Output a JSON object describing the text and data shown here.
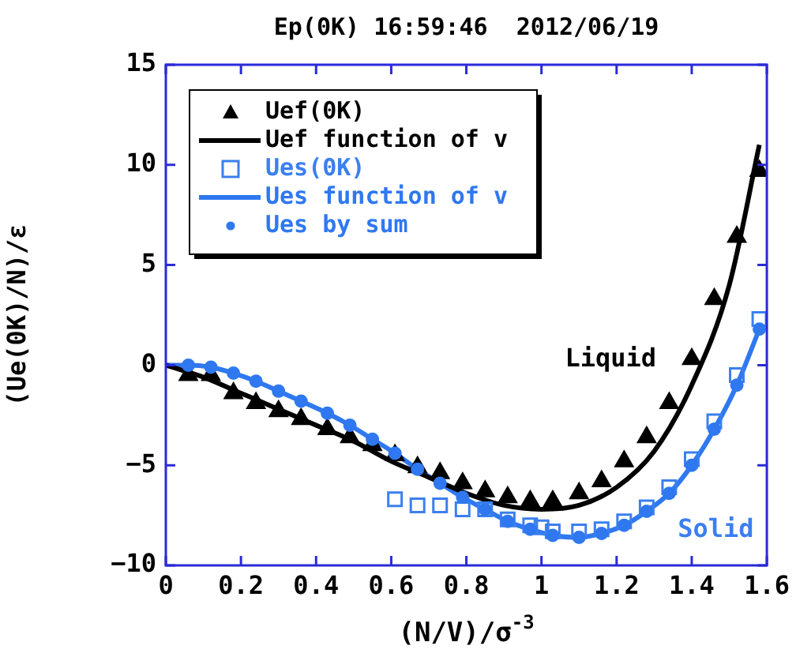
{
  "chart_data": {
    "type": "scatter",
    "title": "Ep(0K) 16:59:46  2012/06/19",
    "xlabel": "(N/V)/σ$^{-3}$",
    "ylabel": "(Ue(0K)/N)/ε",
    "xlim": [
      0,
      1.6
    ],
    "xticks": [
      0,
      0.2,
      0.4,
      0.6,
      0.8,
      1,
      1.2,
      1.4,
      1.6
    ],
    "ylim": [
      -10,
      15
    ],
    "yticks": [
      -10,
      -5,
      0,
      5,
      10,
      15
    ],
    "grid": false,
    "legend": "top left",
    "annotations": [
      "Liquid",
      "Solid"
    ],
    "series": [
      {
        "name": "Uef(0K)",
        "type": "scatter",
        "marker": "triangle",
        "color": "#000000",
        "x": [
          0.06,
          0.12,
          0.18,
          0.24,
          0.3,
          0.36,
          0.43,
          0.49,
          0.55,
          0.61,
          0.67,
          0.73,
          0.79,
          0.85,
          0.91,
          0.97,
          1.03,
          1.1,
          1.16,
          1.22,
          1.28,
          1.34,
          1.4,
          1.46,
          1.52,
          1.58
        ],
        "values": [
          -0.5,
          -0.5,
          -1.4,
          -1.9,
          -2.3,
          -2.7,
          -3.2,
          -3.6,
          -4.0,
          -4.5,
          -5.1,
          -5.4,
          -5.9,
          -6.3,
          -6.6,
          -6.8,
          -6.8,
          -6.4,
          -5.8,
          -4.8,
          -3.6,
          -1.9,
          0.3,
          3.3,
          6.4,
          9.7
        ]
      },
      {
        "name": "Uef function of v",
        "type": "line",
        "marker": "none",
        "color": "#000000",
        "x": [
          0,
          0.1,
          0.2,
          0.3,
          0.4,
          0.5,
          0.6,
          0.7,
          0.8,
          0.9,
          1.0,
          1.1,
          1.2,
          1.3,
          1.4,
          1.5,
          1.58
        ],
        "values": [
          0,
          -0.6,
          -1.4,
          -2.2,
          -3.0,
          -3.8,
          -4.8,
          -5.6,
          -6.4,
          -7.0,
          -7.2,
          -7.0,
          -6.1,
          -4.3,
          -1.0,
          4.0,
          11.0
        ]
      },
      {
        "name": "Ues(0K)",
        "type": "scatter",
        "marker": "square",
        "color": "#3b7ff0",
        "x": [
          0.61,
          0.67,
          0.73,
          0.79,
          0.85,
          0.91,
          0.97,
          1.0,
          1.03,
          1.1,
          1.16,
          1.22,
          1.28,
          1.34,
          1.4,
          1.46,
          1.52,
          1.58
        ],
        "values": [
          -6.7,
          -7.0,
          -7.0,
          -7.2,
          -7.2,
          -7.7,
          -8.0,
          -8.1,
          -8.3,
          -8.3,
          -8.2,
          -7.8,
          -7.1,
          -6.1,
          -4.7,
          -2.8,
          -0.5,
          2.3
        ]
      },
      {
        "name": "Ues function of v",
        "type": "line",
        "marker": "none",
        "color": "#2f78f0",
        "x": [
          0,
          0.06,
          0.12,
          0.18,
          0.24,
          0.3,
          0.36,
          0.43,
          0.49,
          0.55,
          0.61,
          0.67,
          0.73,
          0.79,
          0.85,
          0.91,
          0.97,
          1.03,
          1.1,
          1.16,
          1.22,
          1.28,
          1.34,
          1.4,
          1.46,
          1.52,
          1.58
        ],
        "values": [
          0,
          0.0,
          -0.1,
          -0.4,
          -0.8,
          -1.3,
          -1.8,
          -2.4,
          -3.0,
          -3.7,
          -4.4,
          -5.2,
          -5.9,
          -6.6,
          -7.2,
          -7.8,
          -8.2,
          -8.5,
          -8.6,
          -8.4,
          -8.0,
          -7.3,
          -6.4,
          -5.0,
          -3.2,
          -1.0,
          1.8
        ]
      },
      {
        "name": "Ues by sum",
        "type": "scatter",
        "marker": "circle",
        "color": "#2f78f0",
        "x": [
          0.06,
          0.12,
          0.18,
          0.24,
          0.3,
          0.36,
          0.43,
          0.49,
          0.55,
          0.61,
          0.67,
          0.73,
          0.79,
          0.85,
          0.91,
          0.97,
          1.03,
          1.1,
          1.16,
          1.22,
          1.28,
          1.34,
          1.4,
          1.46,
          1.52,
          1.58
        ],
        "values": [
          0.0,
          -0.1,
          -0.4,
          -0.8,
          -1.3,
          -1.8,
          -2.4,
          -3.0,
          -3.7,
          -4.4,
          -5.2,
          -5.9,
          -6.6,
          -7.2,
          -7.8,
          -8.2,
          -8.5,
          -8.6,
          -8.4,
          -8.0,
          -7.3,
          -6.4,
          -5.0,
          -3.2,
          -1.0,
          1.8
        ]
      }
    ]
  }
}
